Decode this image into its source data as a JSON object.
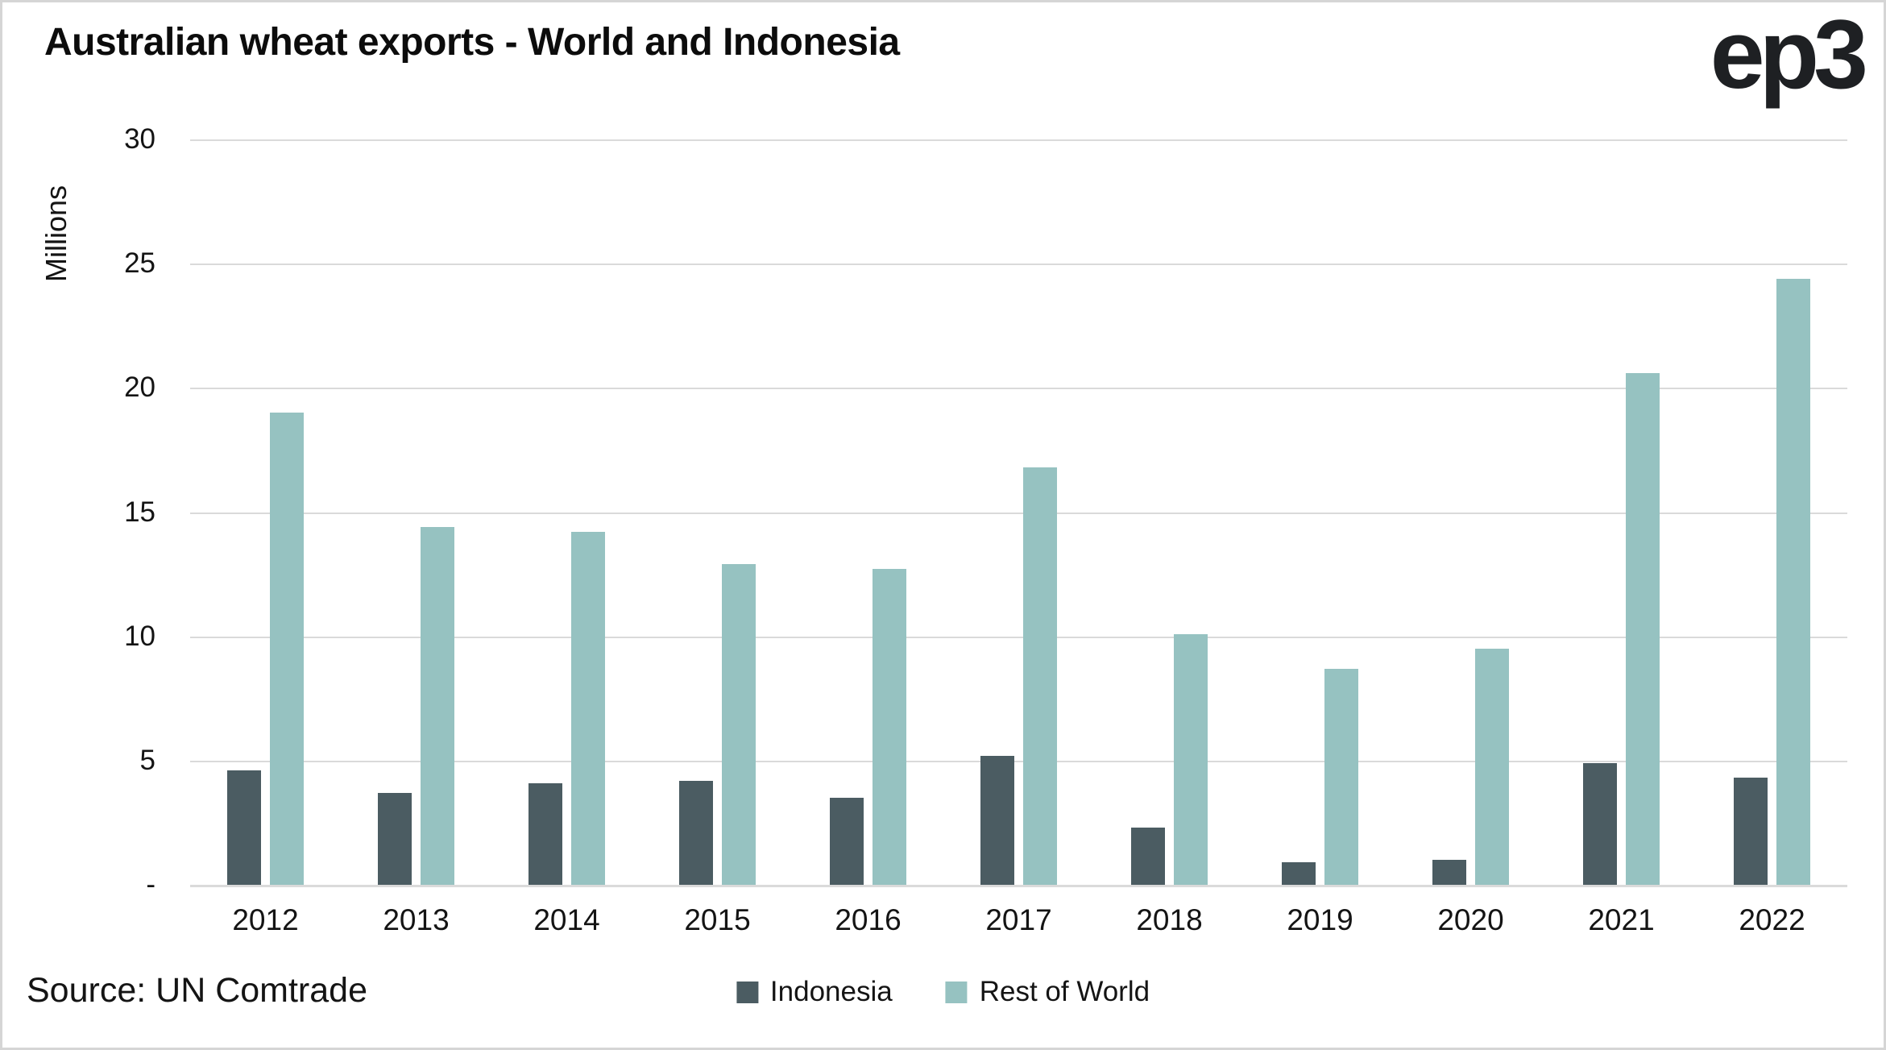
{
  "title": "Australian wheat exports - World and Indonesia",
  "logo": "ep3",
  "source": "Source: UN Comtrade",
  "colors": {
    "indonesia": "#4b5c62",
    "rest_of_world": "#96c2c1",
    "gridline": "#dadada",
    "text": "#141414"
  },
  "chart_data": {
    "type": "bar",
    "title": "Australian wheat exports - World and Indonesia",
    "xlabel": "",
    "ylabel": "Millions",
    "ylim": [
      0,
      30
    ],
    "grid": true,
    "legend_position": "bottom",
    "yticks": [
      {
        "label": "30",
        "value": 30
      },
      {
        "label": "25",
        "value": 25
      },
      {
        "label": "20",
        "value": 20
      },
      {
        "label": "15",
        "value": 15
      },
      {
        "label": "10",
        "value": 10
      },
      {
        "label": "5",
        "value": 5
      },
      {
        "label": "-",
        "value": 0
      }
    ],
    "categories": [
      "2012",
      "2013",
      "2014",
      "2015",
      "2016",
      "2017",
      "2018",
      "2019",
      "2020",
      "2021",
      "2022"
    ],
    "series": [
      {
        "name": "Indonesia",
        "color": "#4b5c62",
        "values": [
          4.6,
          3.7,
          4.1,
          4.2,
          3.5,
          5.2,
          2.3,
          0.9,
          1.0,
          4.9,
          4.3
        ]
      },
      {
        "name": "Rest of World",
        "color": "#96c2c1",
        "values": [
          19.0,
          14.4,
          14.2,
          12.9,
          12.7,
          16.8,
          10.1,
          8.7,
          9.5,
          20.6,
          24.4
        ]
      }
    ]
  }
}
